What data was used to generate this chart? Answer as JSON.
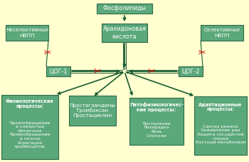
{
  "bg_color": "#FFFFD0",
  "box_facecolor": "#5BA87A",
  "box_edgecolor": "#2E6B4A",
  "box_text_color": "#FFFFFF",
  "arrow_color": "#1B5C32",
  "scissors_color": "#DD0000",
  "line_color": "#1B5C32",
  "title_text": "Фосфолипиды",
  "arachidonic_text": "Арахидоновая\nкислота",
  "nonselective_text": "Неселективные\nНВПП",
  "selective_text": "Селективные\nНВПП",
  "cog1_text": "ЦОГ-1",
  "cog2_text": "ЦОГ-2",
  "prostaglandins_text": "Простагландины\nТромбоксан\nПростациклин",
  "physio_title": "Физиологические\nпроцессы:",
  "physio_items": "Кровообращение\nв слизистых\nоболочках\nКровообращение\nв почках\nАгрегация\nтромбоцитов",
  "patho_title": "Патофизиологичес-\nкие процессы:",
  "patho_items": "Воспаление\nЛихорадка\nБоль\nОпухоли",
  "adapt_title": "Адаптационные\nпроцессы:",
  "adapt_items": "Синтез ренина\nЗаживление ран\nЗащита сосудистой\nстенки\nКостный метаболизм",
  "figw": 3.5,
  "figh": 2.27,
  "dpi": 100
}
